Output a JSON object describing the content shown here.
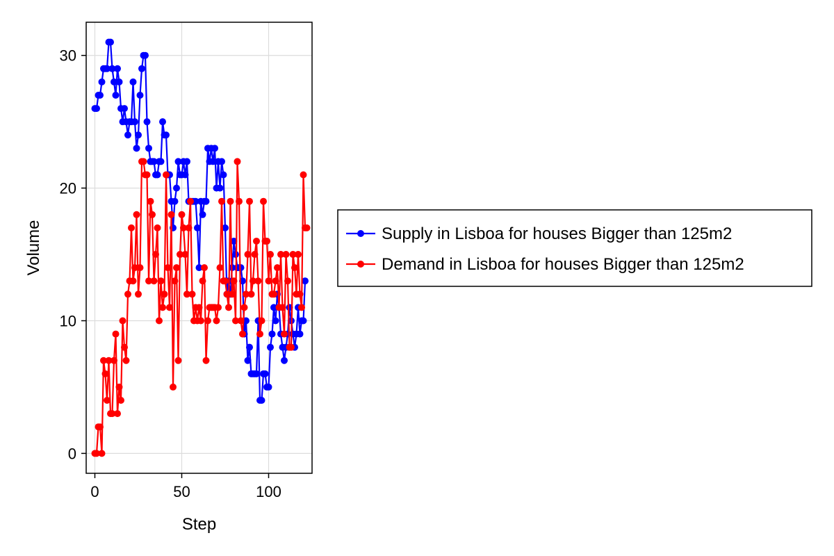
{
  "chart_data": {
    "type": "line",
    "title": "",
    "xlabel": "Step",
    "ylabel": "Volume",
    "xlim": [
      -5,
      125
    ],
    "ylim": [
      -1.5,
      32.5
    ],
    "xticks": [
      0,
      50,
      100
    ],
    "yticks": [
      0,
      10,
      20,
      30
    ],
    "grid": true,
    "legend_position": "right",
    "series": [
      {
        "name": "Supply in Lisboa for houses Bigger than 125m2",
        "color": "#0000ff",
        "values": [
          26,
          26,
          27,
          27,
          28,
          29,
          29,
          29,
          31,
          31,
          29,
          28,
          27,
          29,
          28,
          26,
          25,
          26,
          25,
          24,
          25,
          25,
          28,
          25,
          23,
          24,
          27,
          29,
          30,
          30,
          25,
          23,
          22,
          22,
          22,
          21,
          21,
          22,
          22,
          25,
          24,
          24,
          21,
          21,
          19,
          17,
          19,
          20,
          22,
          21,
          21,
          22,
          21,
          22,
          19,
          19,
          19,
          19,
          19,
          17,
          14,
          19,
          18,
          19,
          19,
          23,
          22,
          23,
          22,
          23,
          20,
          22,
          20,
          22,
          21,
          17,
          12,
          13,
          12,
          14,
          16,
          15,
          14,
          14,
          14,
          13,
          9,
          10,
          7,
          8,
          6,
          6,
          6,
          6,
          10,
          4,
          4,
          6,
          6,
          5,
          5,
          8,
          9,
          11,
          10,
          12,
          11,
          9,
          8,
          7,
          8,
          9,
          11,
          10,
          9,
          8,
          9,
          11,
          9,
          10,
          10,
          13
        ]
      },
      {
        "name": "Demand in Lisboa for houses Bigger than 125m2",
        "color": "#ff0000",
        "values": [
          0,
          0,
          2,
          2,
          0,
          7,
          6,
          4,
          7,
          3,
          3,
          7,
          9,
          3,
          5,
          4,
          10,
          8,
          7,
          12,
          13,
          17,
          13,
          14,
          18,
          12,
          14,
          22,
          22,
          21,
          21,
          13,
          19,
          18,
          13,
          15,
          17,
          10,
          13,
          11,
          12,
          21,
          14,
          11,
          18,
          5,
          13,
          14,
          7,
          15,
          18,
          17,
          15,
          12,
          17,
          19,
          12,
          10,
          11,
          10,
          11,
          10,
          13,
          14,
          7,
          10,
          11,
          11,
          11,
          11,
          10,
          11,
          14,
          19,
          13,
          13,
          12,
          11,
          19,
          12,
          13,
          10,
          22,
          19,
          10,
          9,
          11,
          12,
          15,
          19,
          12,
          13,
          15,
          16,
          13,
          9,
          10,
          19,
          16,
          16,
          13,
          15,
          12,
          12,
          13,
          14,
          11,
          15,
          11,
          9,
          15,
          13,
          8,
          8,
          15,
          14,
          12,
          15,
          12,
          11,
          21,
          17,
          17
        ]
      }
    ]
  }
}
